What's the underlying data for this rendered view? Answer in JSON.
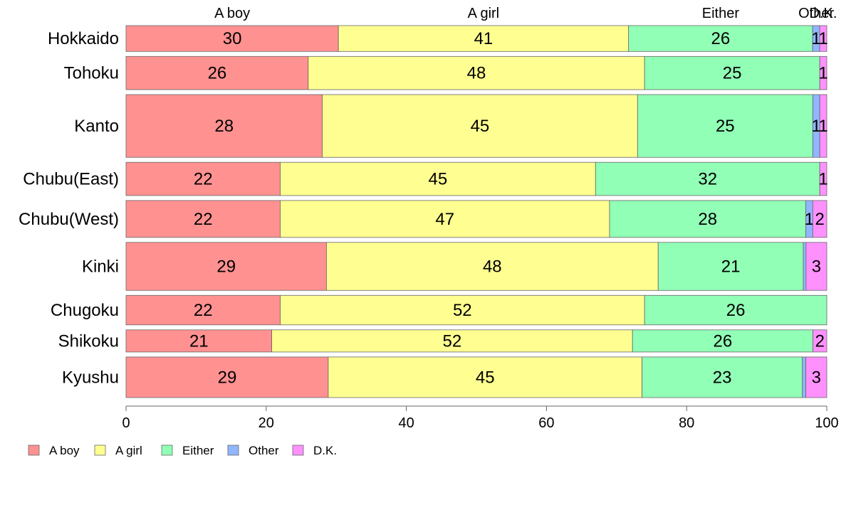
{
  "chart_data": {
    "type": "bar",
    "orientation": "horizontal",
    "stacked": true,
    "percent": true,
    "categories": [
      "Hokkaido",
      "Tohoku",
      "Kanto",
      "Chubu(East)",
      "Chubu(West)",
      "Kinki",
      "Chugoku",
      "Shikoku",
      "Kyushu"
    ],
    "category_weights": [
      0.7,
      0.9,
      1.7,
      0.9,
      1.0,
      1.3,
      0.8,
      0.6,
      1.1
    ],
    "series": [
      {
        "name": "A boy",
        "color": "#ff9191",
        "values": [
          30,
          26,
          28,
          22,
          22,
          29,
          22,
          21,
          29
        ]
      },
      {
        "name": "A girl",
        "color": "#ffff91",
        "values": [
          41,
          48,
          45,
          45,
          47,
          48,
          52,
          52,
          45
        ]
      },
      {
        "name": "Either",
        "color": "#91ffb6",
        "values": [
          26,
          25,
          25,
          32,
          28,
          21,
          26,
          26,
          23
        ]
      },
      {
        "name": "Other",
        "color": "#91b6ff",
        "values": [
          1,
          0,
          1,
          0,
          1,
          0.4,
          0,
          0,
          0.5
        ]
      },
      {
        "name": "D.K.",
        "color": "#ff91ff",
        "values": [
          1,
          1,
          1,
          1,
          2,
          3,
          0,
          2,
          3
        ]
      }
    ],
    "top_labels": [
      "A boy",
      "A girl",
      "Either",
      "Other",
      "D.K."
    ],
    "xlim": [
      0,
      100
    ],
    "xticks": [
      0,
      20,
      40,
      60,
      80,
      100
    ],
    "grid": false,
    "legend": "bottom-left"
  }
}
